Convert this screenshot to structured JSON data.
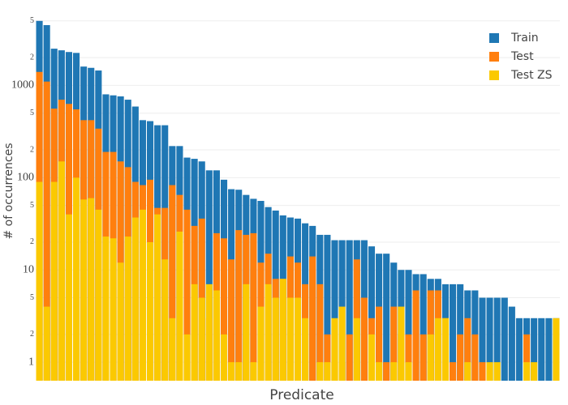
{
  "chart_data": {
    "type": "bar",
    "barmode": "overlay",
    "log_y": true,
    "grid": true,
    "legend": "top-right",
    "xlabel": "Predicate",
    "ylabel": "# of occurrences",
    "categories": [
      null,
      null,
      null,
      null,
      null,
      null,
      null,
      null,
      null,
      null,
      null,
      null,
      null,
      null,
      null,
      null,
      null,
      null,
      null,
      null,
      null,
      null,
      null,
      null,
      null,
      null,
      null,
      null,
      null,
      null,
      null,
      null,
      null,
      null,
      null,
      null,
      null,
      null,
      null,
      null,
      null,
      null,
      null,
      null,
      null,
      null,
      null,
      null,
      null,
      null,
      null,
      null,
      null,
      null,
      null,
      null,
      null,
      null,
      null,
      null,
      null,
      null,
      null,
      null,
      null,
      null,
      null,
      null,
      null,
      null,
      null
    ],
    "series": [
      {
        "name": "Train",
        "color": "#1f77b4",
        "values": [
          5000,
          4500,
          2500,
          2400,
          2300,
          2250,
          1600,
          1550,
          1450,
          800,
          780,
          760,
          700,
          590,
          420,
          410,
          370,
          370,
          220,
          220,
          165,
          160,
          150,
          120,
          120,
          95,
          75,
          74,
          65,
          59,
          56,
          48,
          44,
          39,
          37,
          36,
          32,
          30,
          24,
          24,
          21,
          21,
          21,
          21,
          21,
          18,
          15,
          15,
          12,
          10,
          10,
          9,
          9,
          8,
          8,
          7,
          7,
          7,
          6,
          6,
          5,
          5,
          5,
          5,
          4,
          3,
          3,
          3,
          3,
          3,
          3
        ]
      },
      {
        "name": "Test",
        "color": "#ff7f0e",
        "values": [
          1400,
          1100,
          560,
          700,
          630,
          550,
          420,
          420,
          340,
          190,
          190,
          150,
          130,
          90,
          83,
          95,
          47,
          47,
          83,
          65,
          45,
          30,
          36,
          3,
          25,
          22,
          13,
          27,
          24,
          25,
          12,
          15,
          8,
          8,
          14,
          12,
          7,
          14,
          7,
          2,
          1,
          1,
          2,
          13,
          5,
          3,
          4,
          1,
          4,
          2,
          2,
          6,
          2,
          6,
          6,
          3,
          1,
          2,
          3,
          2,
          1,
          null,
          null,
          null,
          null,
          null,
          2,
          null,
          null,
          null,
          null
        ]
      },
      {
        "name": "Test ZS",
        "color": "#fbc901",
        "values": [
          90,
          4,
          90,
          150,
          40,
          100,
          58,
          60,
          45,
          23,
          22,
          12,
          23,
          37,
          45,
          20,
          40,
          13,
          3,
          26,
          2,
          7,
          5,
          7,
          6,
          2,
          1,
          1,
          7,
          1,
          4,
          7,
          5,
          8,
          5,
          5,
          3,
          null,
          1,
          1,
          3,
          4,
          null,
          3,
          null,
          2,
          1,
          null,
          1,
          4,
          1,
          null,
          null,
          2,
          3,
          3,
          null,
          null,
          1,
          null,
          null,
          1,
          1,
          null,
          null,
          null,
          1,
          1,
          null,
          null,
          3
        ]
      }
    ],
    "ylim": [
      0.63,
      5400
    ],
    "yticks": [
      1,
      {
        "value": 2,
        "label": "2"
      },
      5,
      10,
      {
        "value": 20,
        "label": "2"
      },
      {
        "value": 50,
        "label": "5"
      },
      100,
      {
        "value": 200,
        "label": "2"
      },
      {
        "value": 500,
        "label": "5"
      },
      1000,
      {
        "value": 2000,
        "label": "2"
      },
      {
        "value": 5000,
        "label": "5"
      }
    ]
  }
}
